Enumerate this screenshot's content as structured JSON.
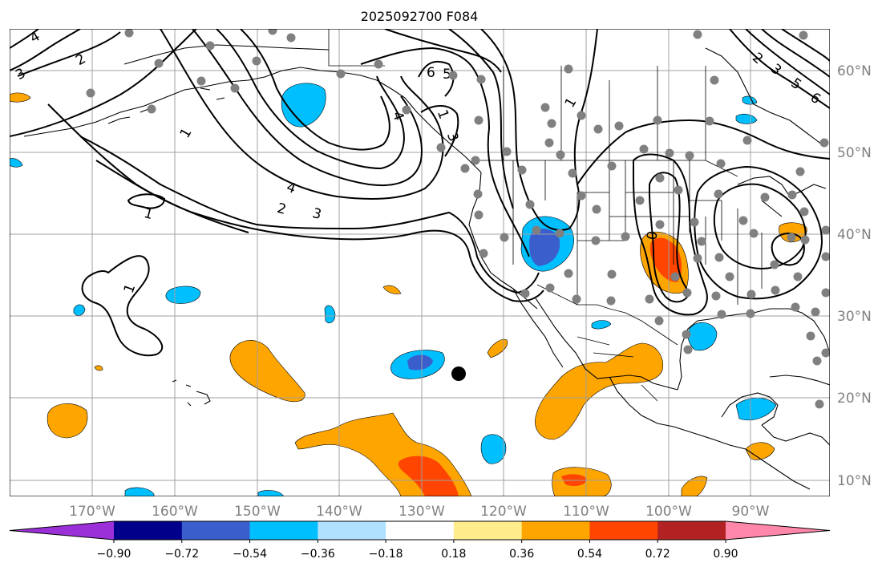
{
  "title": "2025092700 F084",
  "longitude_labels": [
    "170°W",
    "160°W",
    "150°W",
    "140°W",
    "130°W",
    "120°W",
    "110°W",
    "100°W",
    "90°W"
  ],
  "latitude_labels": [
    "60°N",
    "50°N",
    "40°N",
    "30°N",
    "20°N",
    "10°N"
  ],
  "colorbar": {
    "tick_labels": [
      "−0.90",
      "−0.72",
      "−0.54",
      "−0.36",
      "−0.18",
      "0.18",
      "0.36",
      "0.54",
      "0.72",
      "0.90"
    ],
    "colors": [
      "#9b30d9",
      "#00008b",
      "#3a5fcd",
      "#00bfff",
      "#b0e2ff",
      "#ffffff",
      "#ffec8b",
      "#ffa500",
      "#ff4500",
      "#b22222",
      "#ff88aa"
    ]
  },
  "contour_labels": [
    "1",
    "2",
    "3",
    "4",
    "5",
    "6",
    "1",
    "1",
    "1",
    "2",
    "3",
    "4",
    "5",
    "6",
    "3",
    "1",
    "4",
    "2",
    "3",
    "1",
    "0",
    "1"
  ],
  "colors": {
    "land_outline": "#000000",
    "grid": "#a0a0a0",
    "station_dot": "#808080",
    "storm_dot": "#000000",
    "negative": "#00bfff",
    "negative_strong": "#3a5fcd",
    "positive": "#ffa500",
    "positive_strong": "#ff4500"
  }
}
